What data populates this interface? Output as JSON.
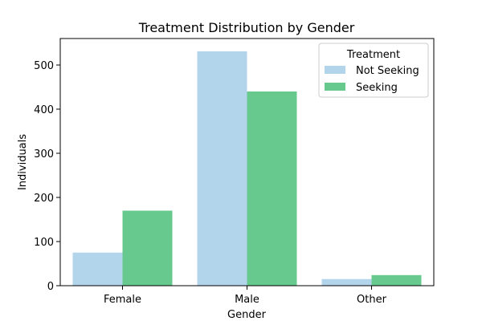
{
  "chart_data": {
    "type": "bar",
    "title": "Treatment Distribution by Gender",
    "xlabel": "Gender",
    "ylabel": "Individuals",
    "categories": [
      "Female",
      "Male",
      "Other"
    ],
    "series": [
      {
        "name": "Not Seeking",
        "values": [
          75,
          531,
          15
        ],
        "color": "#b3d5ec"
      },
      {
        "name": "Seeking",
        "values": [
          170,
          440,
          24
        ],
        "color": "#67c98d"
      }
    ],
    "ylim": [
      0,
      560
    ],
    "yticks": [
      0,
      100,
      200,
      300,
      400,
      500
    ],
    "legend": {
      "title": "Treatment",
      "position": "top-right"
    },
    "grid": false
  }
}
